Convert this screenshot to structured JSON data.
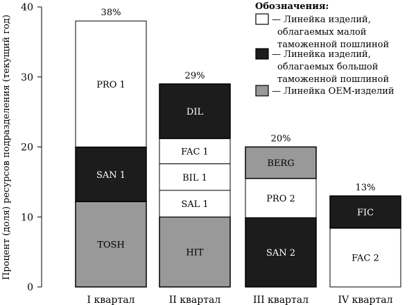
{
  "chart_data": {
    "type": "bar",
    "stacked": true,
    "categories": [
      "I квартал",
      "II квартал",
      "III квартал",
      "IV квартал"
    ],
    "ylabel": "Процент (доля) ресурсов подразделения (текущий год)",
    "xlabel": "",
    "ylim": [
      0,
      40
    ],
    "yticks": [
      0,
      10,
      20,
      30,
      40
    ],
    "grid": false,
    "legend_title": "Обозначения:",
    "legend_position": "top-right",
    "legend": [
      {
        "key": "low",
        "color": "#ffffff",
        "lines": [
          "— Линейка изделий,",
          "облагаемых малой",
          "таможенной пошлиной"
        ]
      },
      {
        "key": "high",
        "color": "#1c1c1c",
        "lines": [
          "— Линейка изделий,",
          "облагаемых большой",
          "таможенной пошлиной"
        ]
      },
      {
        "key": "oem",
        "color": "#999999",
        "lines": [
          "— Линейка OEM-изделий"
        ]
      }
    ],
    "bars": [
      {
        "category": "I квартал",
        "total_label": "38%",
        "total": 38,
        "segments": [
          {
            "label": "TOSH",
            "value": 12.2,
            "type": "oem"
          },
          {
            "label": "SAN 1",
            "value": 7.8,
            "type": "high"
          },
          {
            "label": "PRO 1",
            "value": 18.0,
            "type": "low"
          }
        ]
      },
      {
        "category": "II квартал",
        "total_label": "29%",
        "total": 29,
        "segments": [
          {
            "label": "HIT",
            "value": 10.0,
            "type": "oem"
          },
          {
            "label": "SAL 1",
            "value": 3.8,
            "type": "low"
          },
          {
            "label": "BIL 1",
            "value": 3.8,
            "type": "low"
          },
          {
            "label": "FAC 1",
            "value": 3.6,
            "type": "low"
          },
          {
            "label": "DIL",
            "value": 7.8,
            "type": "high"
          }
        ]
      },
      {
        "category": "III квартал",
        "total_label": "20%",
        "total": 20,
        "segments": [
          {
            "label": "SAN 2",
            "value": 9.9,
            "type": "high"
          },
          {
            "label": "PRO 2",
            "value": 5.6,
            "type": "low"
          },
          {
            "label": "BERG",
            "value": 4.5,
            "type": "oem"
          }
        ]
      },
      {
        "category": "IV квартал",
        "total_label": "13%",
        "total": 13,
        "segments": [
          {
            "label": "FAC 2",
            "value": 8.4,
            "type": "low"
          },
          {
            "label": "FIC",
            "value": 4.6,
            "type": "high"
          }
        ]
      }
    ]
  }
}
